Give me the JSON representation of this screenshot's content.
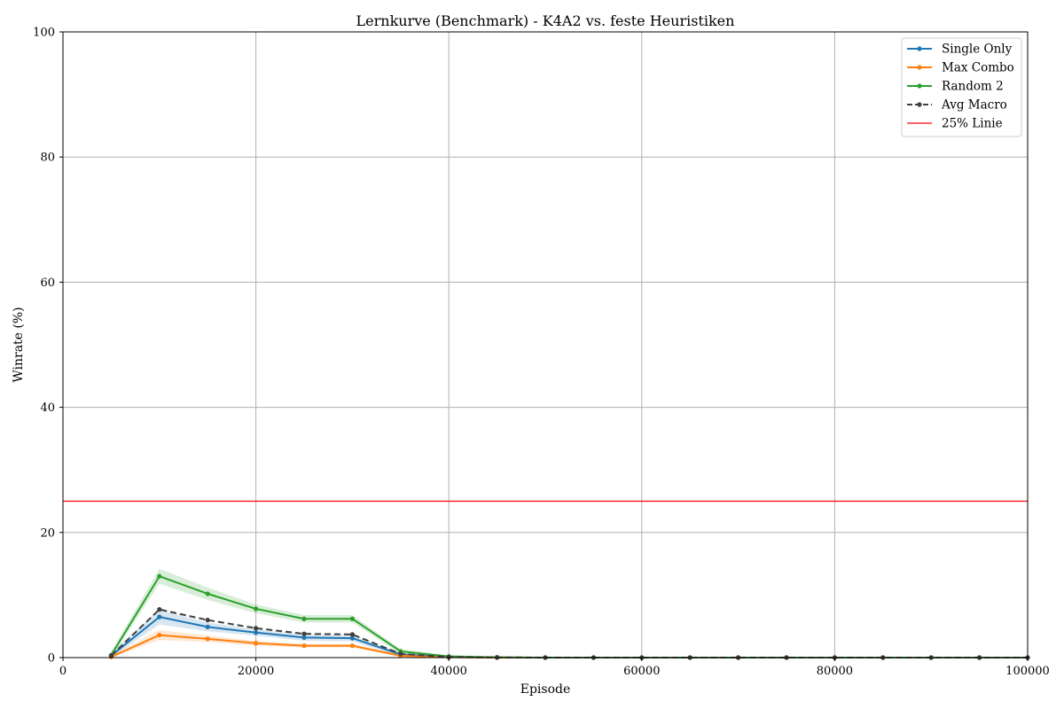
{
  "chart_data": {
    "type": "line",
    "title": "Lernkurve (Benchmark) - K4A2 vs. feste Heuristiken",
    "xlabel": "Episode",
    "ylabel": "Winrate (%)",
    "xlim": [
      0,
      100000
    ],
    "ylim": [
      0,
      100
    ],
    "x_ticks": [
      0,
      20000,
      40000,
      60000,
      80000,
      100000
    ],
    "y_ticks": [
      0,
      20,
      40,
      60,
      80,
      100
    ],
    "grid": true,
    "legend_position": "top-right",
    "x": [
      5000,
      10000,
      15000,
      20000,
      25000,
      30000,
      35000,
      40000,
      45000,
      50000,
      55000,
      60000,
      65000,
      70000,
      75000,
      80000,
      85000,
      90000,
      95000,
      100000
    ],
    "series": [
      {
        "name": "Single Only",
        "color": "#1f77b4",
        "style": "solid",
        "values": [
          0.3,
          6.5,
          4.9,
          4.0,
          3.2,
          3.1,
          0.5,
          0.1,
          0,
          0,
          0,
          0,
          0,
          0,
          0,
          0,
          0,
          0,
          0,
          0
        ],
        "band": [
          0.6,
          1.2,
          0.7,
          0.5,
          0.5,
          0.5,
          0.3,
          0.1,
          0,
          0,
          0,
          0,
          0,
          0,
          0,
          0,
          0,
          0,
          0,
          0
        ]
      },
      {
        "name": "Max Combo",
        "color": "#ff7f0e",
        "style": "solid",
        "values": [
          0.1,
          3.6,
          3.0,
          2.3,
          1.9,
          1.9,
          0.3,
          0.05,
          0,
          0,
          0,
          0,
          0,
          0,
          0,
          0,
          0,
          0,
          0,
          0
        ],
        "band": [
          0.3,
          0.8,
          0.5,
          0.4,
          0.3,
          0.3,
          0.2,
          0.05,
          0,
          0,
          0,
          0,
          0,
          0,
          0,
          0,
          0,
          0,
          0,
          0
        ]
      },
      {
        "name": "Random 2",
        "color": "#2ca02c",
        "style": "solid",
        "values": [
          0.4,
          13.0,
          10.2,
          7.8,
          6.2,
          6.2,
          1.0,
          0.2,
          0.05,
          0,
          0,
          0,
          0,
          0,
          0,
          0,
          0,
          0,
          0,
          0
        ],
        "band": [
          0.6,
          1.2,
          1.0,
          0.7,
          0.6,
          0.6,
          0.4,
          0.1,
          0.05,
          0,
          0,
          0,
          0,
          0,
          0,
          0,
          0,
          0,
          0,
          0
        ]
      },
      {
        "name": "Avg Macro",
        "color": "#404040",
        "style": "dashed",
        "values": [
          0.3,
          7.7,
          6.0,
          4.7,
          3.8,
          3.7,
          0.6,
          0.1,
          0.02,
          0,
          0,
          0,
          0,
          0,
          0,
          0,
          0,
          0,
          0,
          0
        ]
      }
    ],
    "reference_lines": [
      {
        "name": "25% Linie",
        "y": 25,
        "color": "#ff0000"
      }
    ]
  }
}
